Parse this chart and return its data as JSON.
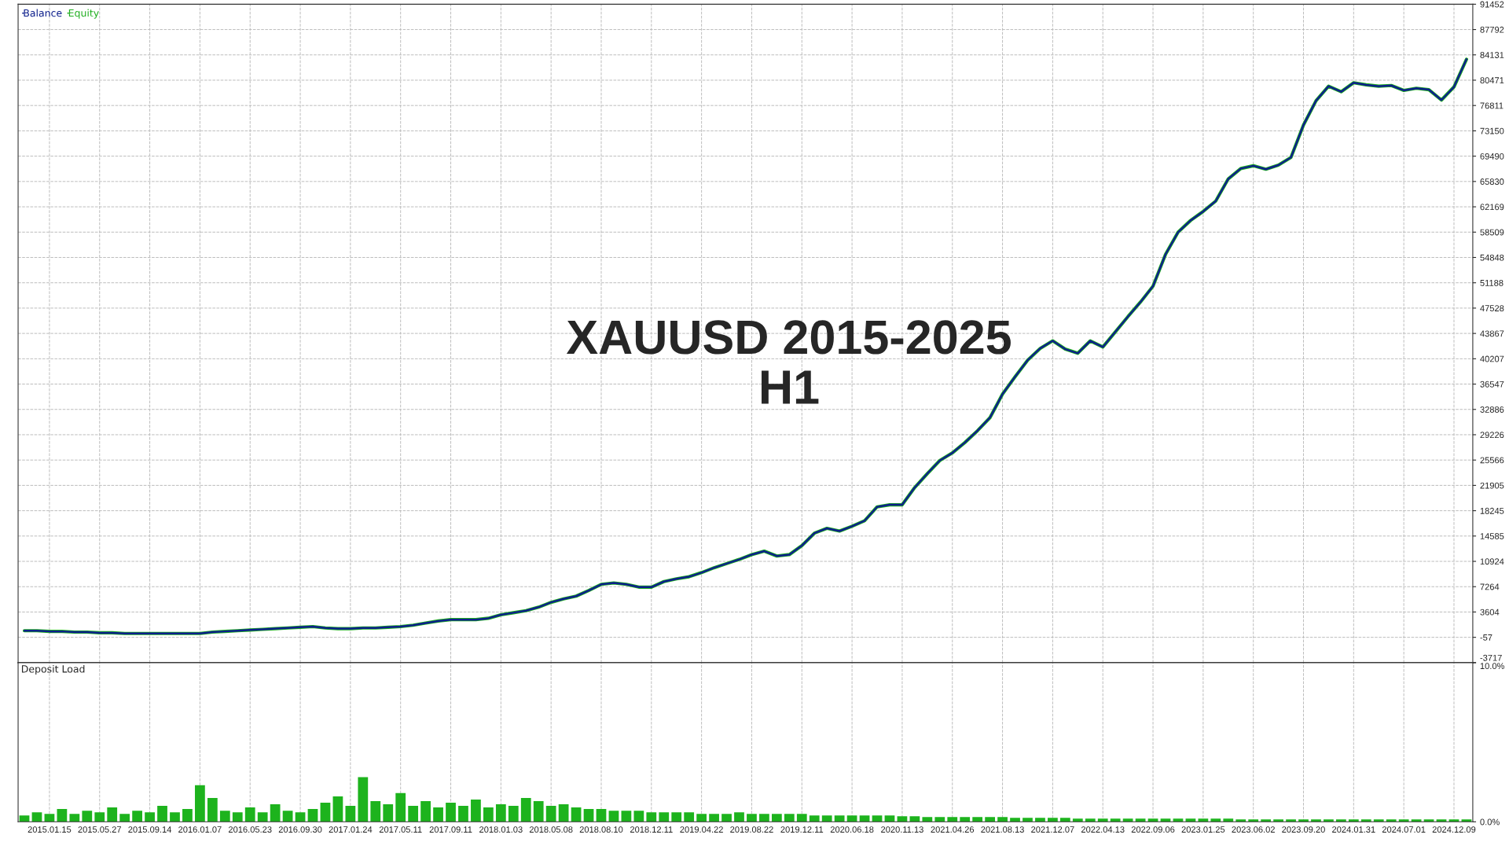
{
  "chart_data": [
    {
      "type": "line",
      "title": "XAUUSD 2015-2025\nH1",
      "categories": [
        null,
        null,
        "2015.01.15",
        null,
        null,
        null,
        "2015.05.27",
        null,
        null,
        null,
        "2015.09.14",
        null,
        null,
        null,
        "2016.01.07",
        null,
        null,
        null,
        "2016.05.23",
        null,
        null,
        null,
        "2016.09.30",
        null,
        null,
        null,
        "2017.01.24",
        null,
        null,
        null,
        "2017.05.11",
        null,
        null,
        null,
        "2017.09.11",
        null,
        null,
        null,
        "2018.01.03",
        null,
        null,
        null,
        "2018.05.08",
        null,
        null,
        null,
        "2018.08.10",
        null,
        null,
        null,
        "2018.12.11",
        null,
        null,
        null,
        "2019.04.22",
        null,
        null,
        null,
        "2019.08.22",
        null,
        null,
        null,
        "2019.12.11",
        null,
        null,
        null,
        "2020.06.18",
        null,
        null,
        null,
        "2020.11.13",
        null,
        null,
        null,
        "2021.04.26",
        null,
        null,
        null,
        "2021.08.13",
        null,
        null,
        null,
        "2021.12.07",
        null,
        null,
        null,
        "2022.04.13",
        null,
        null,
        null,
        "2022.09.06",
        null,
        null,
        null,
        "2023.01.25",
        null,
        null,
        null,
        "2023.06.02",
        null,
        null,
        null,
        "2023.09.20",
        null,
        null,
        null,
        "2024.01.31",
        null,
        null,
        null,
        "2024.07.01",
        null,
        null,
        null,
        "2024.12.09",
        null
      ],
      "ylim": [
        -3717,
        91452
      ],
      "yticks": [
        -3717,
        -57,
        3604,
        7264,
        10924,
        14585,
        18245,
        21905,
        25566,
        29226,
        32886,
        36547,
        40207,
        43867,
        47528,
        51188,
        54848,
        58509,
        62169,
        65830,
        69490,
        73150,
        76811,
        80471,
        84131,
        87792,
        91452
      ],
      "tick_labels": "y",
      "grid": true,
      "legend": "top left",
      "marker": "none",
      "line_style": "solid",
      "series": [
        {
          "name": "Equity",
          "color": "#1fae1f",
          "values": [
            900,
            900,
            800,
            800,
            700,
            700,
            600,
            600,
            500,
            500,
            500,
            500,
            500,
            500,
            500,
            700,
            800,
            900,
            1000,
            1100,
            1200,
            1300,
            1400,
            1500,
            1300,
            1200,
            1200,
            1300,
            1300,
            1400,
            1500,
            1700,
            2000,
            2300,
            2500,
            2500,
            2500,
            2700,
            3200,
            3500,
            3800,
            4300,
            5000,
            5500,
            5900,
            6700,
            7600,
            7800,
            7600,
            7200,
            7200,
            8000,
            8400,
            8700,
            9300,
            10000,
            10600,
            11200,
            11900,
            12400,
            11700,
            11900,
            13200,
            15000,
            15700,
            15300,
            16000,
            16800,
            18800,
            19100,
            19100,
            21600,
            23600,
            25500,
            26600,
            28100,
            29800,
            31700,
            35100,
            37600,
            40000,
            41700,
            42800,
            41600,
            41000,
            42800,
            41900,
            44100,
            46300,
            48400,
            50700,
            55300,
            58500,
            60200,
            61500,
            63000,
            66200,
            67700,
            68100,
            67600,
            68200,
            69300,
            74000,
            77500,
            79600,
            78800,
            80100,
            79800,
            79600,
            79700,
            79000,
            79300,
            79100,
            77600,
            79500,
            83500
          ]
        },
        {
          "name": "Balance",
          "color": "#0d1f8c",
          "values": [
            900,
            900,
            800,
            800,
            700,
            700,
            600,
            600,
            500,
            500,
            500,
            500,
            500,
            500,
            500,
            700,
            800,
            900,
            1000,
            1100,
            1200,
            1300,
            1400,
            1500,
            1300,
            1200,
            1200,
            1300,
            1300,
            1400,
            1500,
            1700,
            2000,
            2300,
            2500,
            2500,
            2500,
            2700,
            3200,
            3500,
            3800,
            4300,
            5000,
            5500,
            5900,
            6700,
            7600,
            7800,
            7600,
            7200,
            7200,
            8000,
            8400,
            8700,
            9300,
            10000,
            10600,
            11200,
            11900,
            12400,
            11700,
            11900,
            13200,
            15000,
            15700,
            15300,
            16000,
            16800,
            18800,
            19100,
            19100,
            21600,
            23600,
            25500,
            26600,
            28100,
            29800,
            31700,
            35100,
            37600,
            40000,
            41700,
            42800,
            41600,
            41000,
            42800,
            41900,
            44100,
            46300,
            48400,
            50700,
            55300,
            58500,
            60200,
            61500,
            63000,
            66200,
            67700,
            68100,
            67600,
            68200,
            69300,
            74000,
            77500,
            79600,
            78800,
            80100,
            79800,
            79600,
            79700,
            79000,
            79300,
            79100,
            77600,
            79500,
            83500
          ]
        }
      ]
    },
    {
      "type": "bar",
      "title": "Deposit Load",
      "color": "#1db31d",
      "categories": [
        null,
        null,
        "2015.01.15",
        null,
        null,
        null,
        "2015.05.27",
        null,
        null,
        null,
        "2015.09.14",
        null,
        null,
        null,
        "2016.01.07",
        null,
        null,
        null,
        "2016.05.23",
        null,
        null,
        null,
        "2016.09.30",
        null,
        null,
        null,
        "2017.01.24",
        null,
        null,
        null,
        "2017.05.11",
        null,
        null,
        null,
        "2017.09.11",
        null,
        null,
        null,
        "2018.01.03",
        null,
        null,
        null,
        "2018.05.08",
        null,
        null,
        null,
        "2018.08.10",
        null,
        null,
        null,
        "2018.12.11",
        null,
        null,
        null,
        "2019.04.22",
        null,
        null,
        null,
        "2019.08.22",
        null,
        null,
        null,
        "2019.12.11",
        null,
        null,
        null,
        "2020.06.18",
        null,
        null,
        null,
        "2020.11.13",
        null,
        null,
        null,
        "2021.04.26",
        null,
        null,
        null,
        "2021.08.13",
        null,
        null,
        null,
        "2021.12.07",
        null,
        null,
        null,
        "2022.04.13",
        null,
        null,
        null,
        "2022.09.06",
        null,
        null,
        null,
        "2023.01.25",
        null,
        null,
        null,
        "2023.06.02",
        null,
        null,
        null,
        "2023.09.20",
        null,
        null,
        null,
        "2024.01.31",
        null,
        null,
        null,
        "2024.07.01",
        null,
        null,
        null,
        "2024.12.09",
        null
      ],
      "ylim": [
        0,
        10
      ],
      "yticks": [
        {
          "value": 0,
          "label": "0.0%"
        },
        {
          "value": 10,
          "label": "10.0%"
        }
      ],
      "grid": "x",
      "values": [
        0.4,
        0.6,
        0.5,
        0.8,
        0.5,
        0.7,
        0.6,
        0.9,
        0.5,
        0.7,
        0.6,
        1.0,
        0.6,
        0.8,
        2.3,
        1.5,
        0.7,
        0.6,
        0.9,
        0.6,
        1.1,
        0.7,
        0.6,
        0.8,
        1.2,
        1.6,
        1.0,
        2.8,
        1.3,
        1.1,
        1.8,
        1.0,
        1.3,
        0.9,
        1.2,
        1.0,
        1.4,
        0.9,
        1.1,
        1.0,
        1.5,
        1.3,
        1.0,
        1.1,
        0.9,
        0.8,
        0.8,
        0.7,
        0.7,
        0.7,
        0.6,
        0.6,
        0.6,
        0.6,
        0.5,
        0.5,
        0.5,
        0.6,
        0.5,
        0.5,
        0.5,
        0.5,
        0.5,
        0.4,
        0.4,
        0.4,
        0.4,
        0.4,
        0.4,
        0.4,
        0.35,
        0.35,
        0.3,
        0.3,
        0.3,
        0.3,
        0.3,
        0.3,
        0.3,
        0.25,
        0.25,
        0.25,
        0.25,
        0.25,
        0.2,
        0.2,
        0.2,
        0.2,
        0.2,
        0.2,
        0.2,
        0.2,
        0.2,
        0.2,
        0.2,
        0.2,
        0.2,
        0.15,
        0.15,
        0.15,
        0.15,
        0.15,
        0.15,
        0.15,
        0.15,
        0.15,
        0.15,
        0.15,
        0.15,
        0.15,
        0.15,
        0.15,
        0.15,
        0.15,
        0.15,
        0.15
      ]
    }
  ]
}
